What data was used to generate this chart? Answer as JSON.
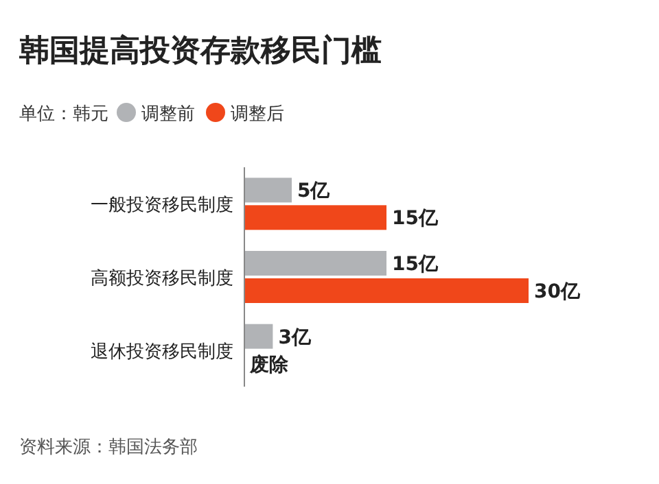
{
  "chart_data": {
    "type": "bar",
    "orientation": "horizontal",
    "title": "韩国提高投资存款移民门槛",
    "legend_title": "单位：韩元",
    "legend": "top left",
    "categories": [
      "一般投资移民制度",
      "高额投资移民制度",
      "退休投资移民制度"
    ],
    "series": [
      {
        "name": "调整前",
        "color": "#b1b3b6",
        "values": [
          5,
          15,
          3
        ],
        "value_labels": [
          "5亿",
          "15亿",
          "3亿"
        ]
      },
      {
        "name": "调整后",
        "color": "#f0471a",
        "values": [
          15,
          30,
          0
        ],
        "value_labels": [
          "15亿",
          "30亿",
          "废除"
        ]
      }
    ],
    "annotations": [
      "资料来源：韩国法务部"
    ]
  }
}
